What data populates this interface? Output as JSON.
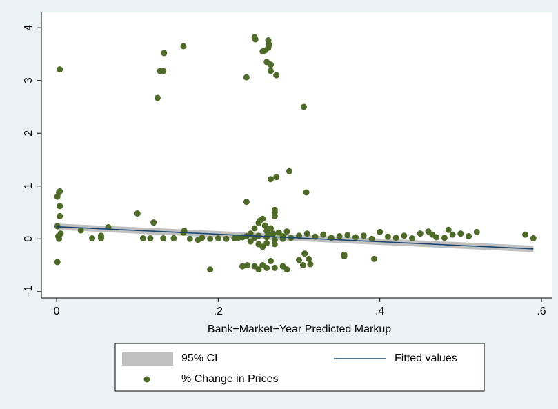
{
  "chart_data": {
    "type": "scatter",
    "xlabel": "Bank−Market−Year Predicted Markup",
    "xlim": [
      -0.0188,
      0.6128
    ],
    "ylim": [
      -1.12,
      4.29
    ],
    "xticks": [
      0,
      {
        "value": 0.2,
        "label": ".2"
      },
      {
        "value": 0.4,
        "label": ".4"
      },
      {
        "value": 0.6,
        "label": ".6"
      }
    ],
    "yticks": [
      {
        "value": -1,
        "label": "−1"
      },
      0,
      1,
      2,
      3,
      4
    ],
    "grid": false,
    "legend": "bottom",
    "series": [
      {
        "name": "95% CI",
        "type": "band",
        "color": "#c0c0c0",
        "x": [
          0,
          0.59
        ],
        "lower": [
          0.17,
          -0.25
        ],
        "upper": [
          0.29,
          -0.13
        ]
      },
      {
        "name": "Fitted values",
        "type": "line",
        "color": "#1a476f",
        "x": [
          0,
          0.59
        ],
        "values": [
          0.23,
          -0.19
        ]
      },
      {
        "name": "% Change in Prices",
        "type": "scatter",
        "color": "#4d6b27",
        "x": [
          0.004,
          0.125,
          0.128,
          0.132,
          0.133,
          0.157,
          0.235,
          0.245,
          0.246,
          0.255,
          0.258,
          0.26,
          0.262,
          0.262,
          0.263,
          0.265,
          0.265,
          0.272,
          0.306,
          0.001,
          0.003,
          0.004,
          0.004,
          0.004,
          0.001,
          0.001,
          0.002,
          0.003,
          0.005,
          0.03,
          0.044,
          0.055,
          0.055,
          0.064,
          0.1,
          0.107,
          0.116,
          0.12,
          0.132,
          0.145,
          0.157,
          0.158,
          0.165,
          0.175,
          0.18,
          0.19,
          0.23,
          0.235,
          0.236,
          0.245,
          0.25,
          0.255,
          0.26,
          0.265,
          0.27,
          0.28,
          0.285,
          0.3,
          0.305,
          0.307,
          0.312,
          0.314,
          0.356,
          0.356,
          0.393,
          0.265,
          0.272,
          0.288,
          0.309,
          0.27,
          0.27,
          0.27,
          0.19,
          0.2,
          0.21,
          0.22,
          0.225,
          0.23,
          0.24,
          0.245,
          0.25,
          0.252,
          0.255,
          0.258,
          0.26,
          0.262,
          0.265,
          0.268,
          0.24,
          0.25,
          0.255,
          0.26,
          0.27,
          0.275,
          0.28,
          0.285,
          0.29,
          0.3,
          0.31,
          0.32,
          0.33,
          0.34,
          0.35,
          0.36,
          0.37,
          0.38,
          0.39,
          0.4,
          0.41,
          0.42,
          0.43,
          0.44,
          0.45,
          0.46,
          0.465,
          0.47,
          0.48,
          0.485,
          0.49,
          0.5,
          0.51,
          0.52,
          0.58,
          0.59,
          0.245,
          0.26,
          0.27,
          0.28,
          0.235,
          0.25
        ],
        "values": [
          3.21,
          2.67,
          3.18,
          3.18,
          3.52,
          3.65,
          3.06,
          3.82,
          3.78,
          3.55,
          3.57,
          3.35,
          3.62,
          3.76,
          3.68,
          3.3,
          3.18,
          3.1,
          2.5,
          0.8,
          0.88,
          0.9,
          0.62,
          0.43,
          0.24,
          -0.44,
          0.05,
          0.0,
          0.1,
          0.16,
          0.01,
          0.06,
          0.01,
          0.22,
          0.48,
          0.01,
          0.01,
          0.31,
          0.01,
          0.01,
          0.12,
          0.15,
          0.0,
          -0.02,
          0.02,
          -0.58,
          -0.52,
          0.7,
          -0.5,
          -0.52,
          -0.58,
          -0.5,
          -0.55,
          -0.42,
          -0.55,
          -0.52,
          -0.58,
          -0.4,
          -0.5,
          -0.28,
          -0.38,
          -0.48,
          -0.3,
          -0.33,
          -0.38,
          1.13,
          1.17,
          1.28,
          0.88,
          0.55,
          0.5,
          0.43,
          0.0,
          0.01,
          0.0,
          0.01,
          0.02,
          0.03,
          0.1,
          0.2,
          0.3,
          0.35,
          0.38,
          0.25,
          0.15,
          0.08,
          0.2,
          0.1,
          -0.05,
          -0.1,
          -0.15,
          -0.08,
          -0.1,
          0.12,
          0.05,
          0.14,
          0.02,
          0.06,
          0.1,
          0.04,
          0.08,
          0.02,
          0.05,
          0.07,
          0.03,
          0.06,
          0.0,
          0.13,
          0.04,
          0.02,
          0.06,
          0.01,
          0.1,
          0.14,
          0.08,
          0.03,
          0.02,
          0.17,
          0.08,
          0.1,
          0.05,
          0.13,
          0.08,
          0.01,
          0.02,
          0.03,
          -0.02,
          0.0,
          0.05,
          0.06
        ]
      }
    ]
  }
}
